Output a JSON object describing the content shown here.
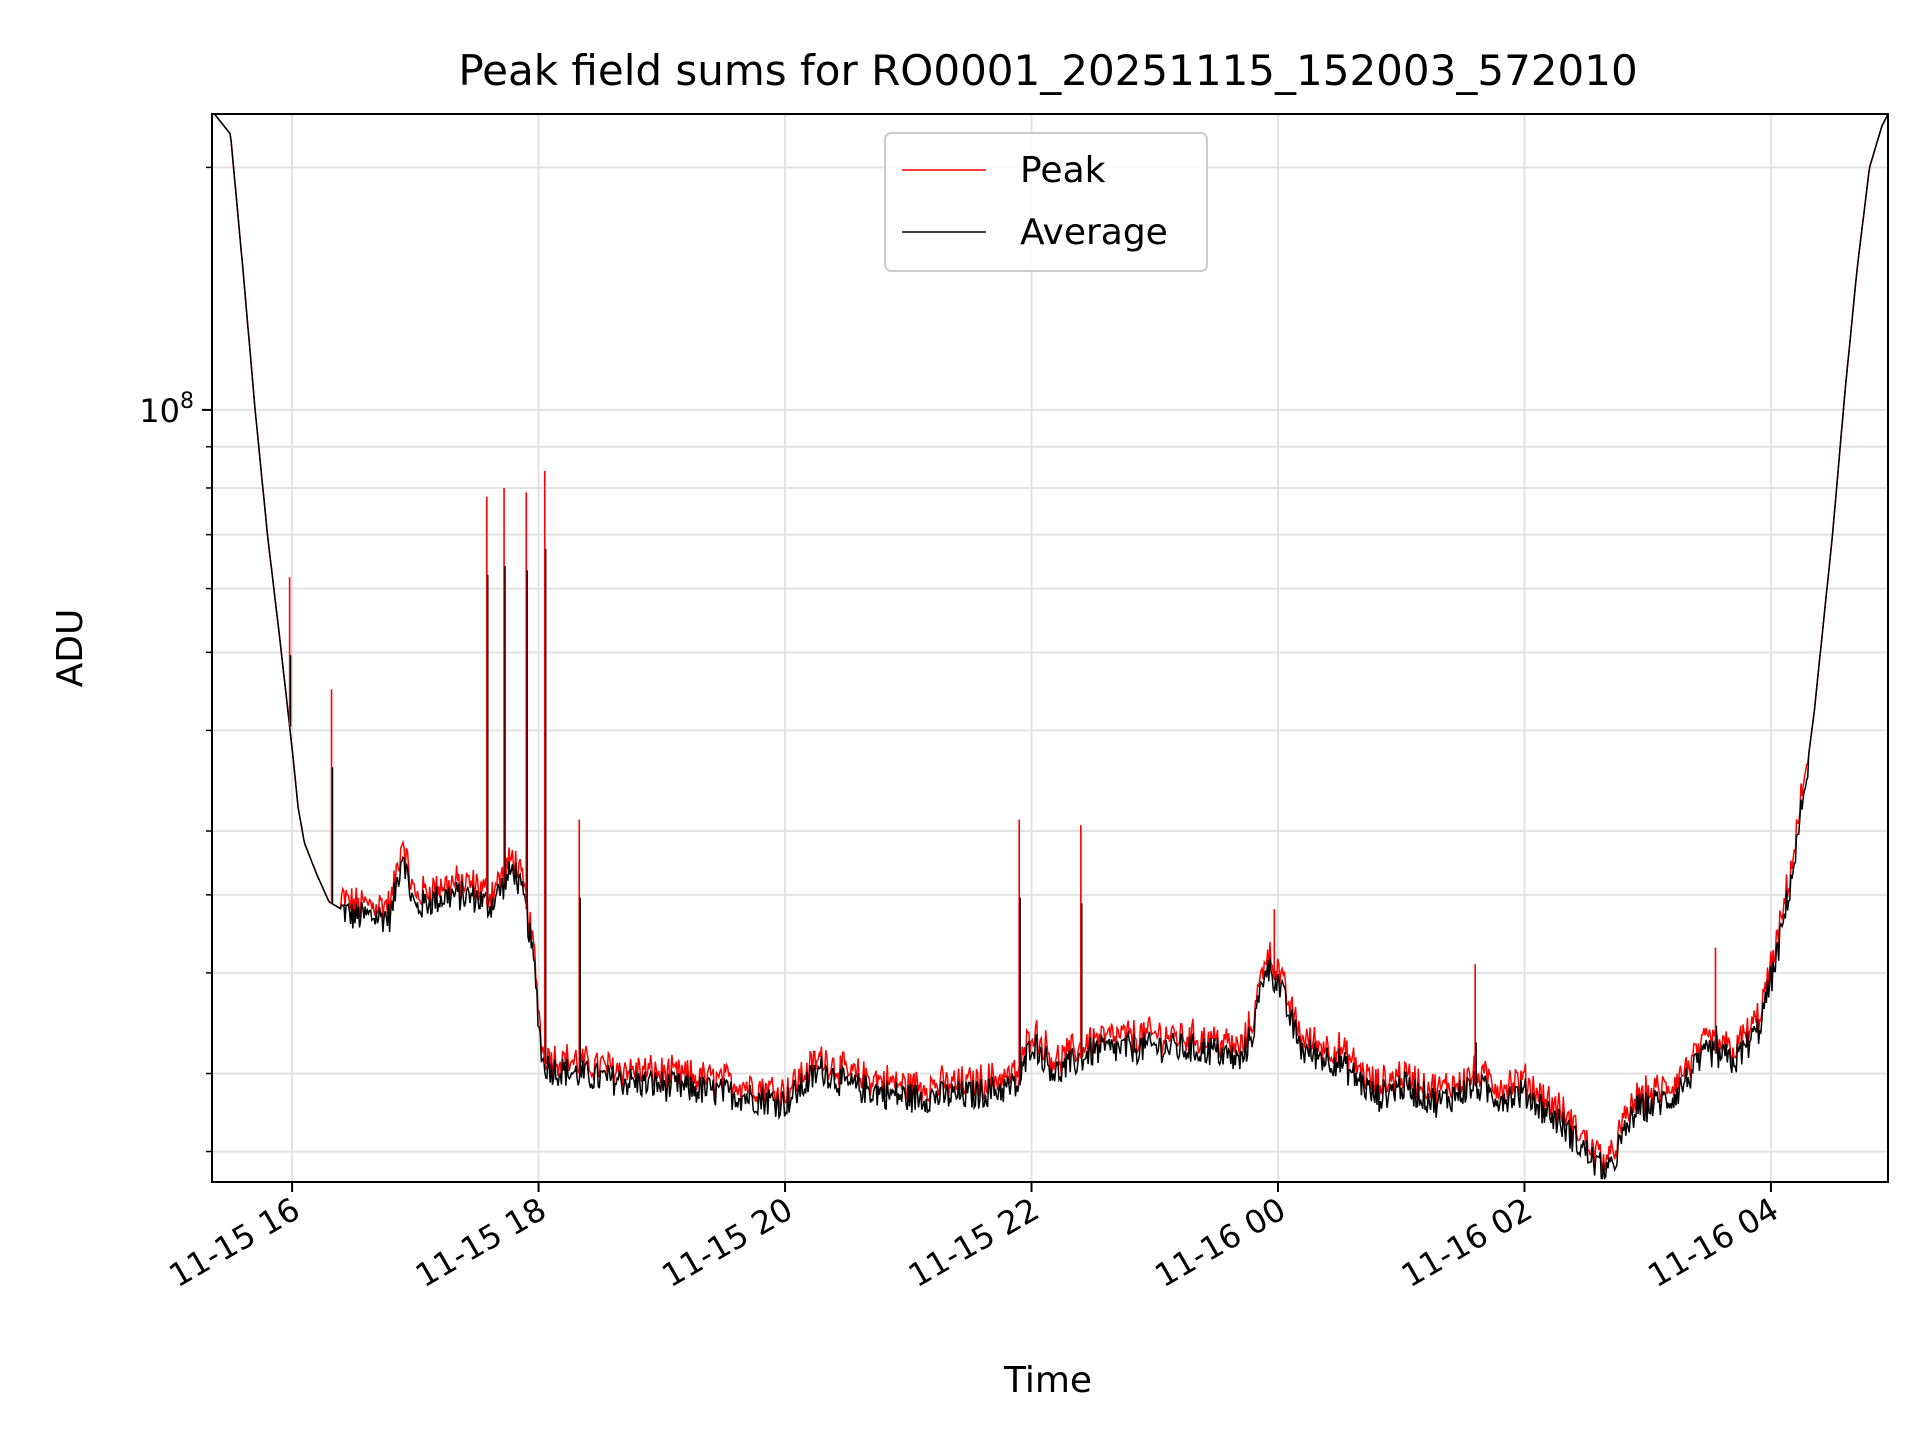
{
  "chart_data": {
    "type": "line",
    "title": "Peak field sums for RO0001_20251115_152003_572010",
    "xlabel": "Time",
    "ylabel": "ADU",
    "yscale": "log",
    "ylim": [
      11000000,
      233000000
    ],
    "xlim_hours": [
      -0.65,
      12.95
    ],
    "x_ticks": [
      {
        "label": "11-15 16",
        "hours": 0
      },
      {
        "label": "11-15 18",
        "hours": 2
      },
      {
        "label": "11-15 20",
        "hours": 4
      },
      {
        "label": "11-15 22",
        "hours": 6
      },
      {
        "label": "11-16 00",
        "hours": 8
      },
      {
        "label": "11-16 02",
        "hours": 10
      },
      {
        "label": "11-16 04",
        "hours": 12
      }
    ],
    "y_major_tick": {
      "base": "10",
      "exp": "8",
      "value": 100000000
    },
    "y_minor_ticks": [
      12000000,
      15000000,
      20000000,
      25000000,
      30000000,
      40000000,
      50000000,
      60000000,
      70000000,
      80000000,
      90000000,
      200000000
    ],
    "x_reference": "hours since 2025-11-15 16:00",
    "legend": {
      "position": "upper center",
      "entries": [
        "Peak",
        "Average"
      ]
    },
    "series": [
      {
        "name": "Peak",
        "color": "#ff0000"
      },
      {
        "name": "Average",
        "color": "#000000"
      }
    ],
    "average": {
      "x": [
        -0.63,
        -0.5,
        -0.4,
        -0.3,
        -0.2,
        -0.1,
        0.0,
        0.05,
        0.1,
        0.2,
        0.3,
        0.5,
        0.8,
        0.9,
        0.95,
        1.0,
        1.1,
        1.3,
        1.5,
        1.6,
        1.7,
        1.8,
        1.9,
        1.97,
        2.03,
        2.1,
        2.3,
        2.5,
        3.0,
        3.5,
        4.0,
        4.3,
        4.5,
        5.0,
        5.5,
        5.9,
        6.0,
        6.2,
        6.5,
        7.0,
        7.5,
        7.7,
        7.8,
        7.9,
        8.0,
        8.1,
        8.2,
        8.5,
        8.8,
        9.0,
        9.3,
        9.6,
        9.8,
        10.0,
        10.3,
        10.6,
        10.7,
        10.75,
        10.9,
        11.2,
        11.5,
        11.7,
        11.9,
        12.05,
        12.2,
        12.35,
        12.5,
        12.6,
        12.7,
        12.8,
        12.9,
        12.95
      ],
      "y": [
        233000000,
        220000000,
        150000000,
        100000000,
        70000000,
        52000000,
        38000000,
        32000000,
        29000000,
        26500000,
        24500000,
        23500000,
        23500000,
        28500000,
        25500000,
        24000000,
        24500000,
        25000000,
        24800000,
        24200000,
        25500000,
        27000000,
        24000000,
        20000000,
        15500000,
        15200000,
        15000000,
        14800000,
        14500000,
        14200000,
        13800000,
        15200000,
        14500000,
        14000000,
        14100000,
        14500000,
        16500000,
        15000000,
        16000000,
        16200000,
        16000000,
        15500000,
        17000000,
        20500000,
        19500000,
        17500000,
        16000000,
        15500000,
        14000000,
        14500000,
        13800000,
        14500000,
        14000000,
        14200000,
        13000000,
        11500000,
        11300000,
        12000000,
        13500000,
        14000000,
        16000000,
        15500000,
        17000000,
        21000000,
        28000000,
        42000000,
        70000000,
        105000000,
        150000000,
        200000000,
        225000000,
        233000000
      ]
    },
    "peak_spikes": [
      {
        "x": -0.02,
        "y": 62000000
      },
      {
        "x": 0.32,
        "y": 45000000
      },
      {
        "x": 1.58,
        "y": 78000000
      },
      {
        "x": 1.72,
        "y": 80000000
      },
      {
        "x": 1.9,
        "y": 79000000
      },
      {
        "x": 2.05,
        "y": 84000000
      },
      {
        "x": 2.33,
        "y": 31000000
      },
      {
        "x": 5.9,
        "y": 31000000
      },
      {
        "x": 6.4,
        "y": 30500000
      },
      {
        "x": 7.97,
        "y": 24000000
      },
      {
        "x": 9.6,
        "y": 20500000
      },
      {
        "x": 11.55,
        "y": 21500000
      }
    ]
  }
}
